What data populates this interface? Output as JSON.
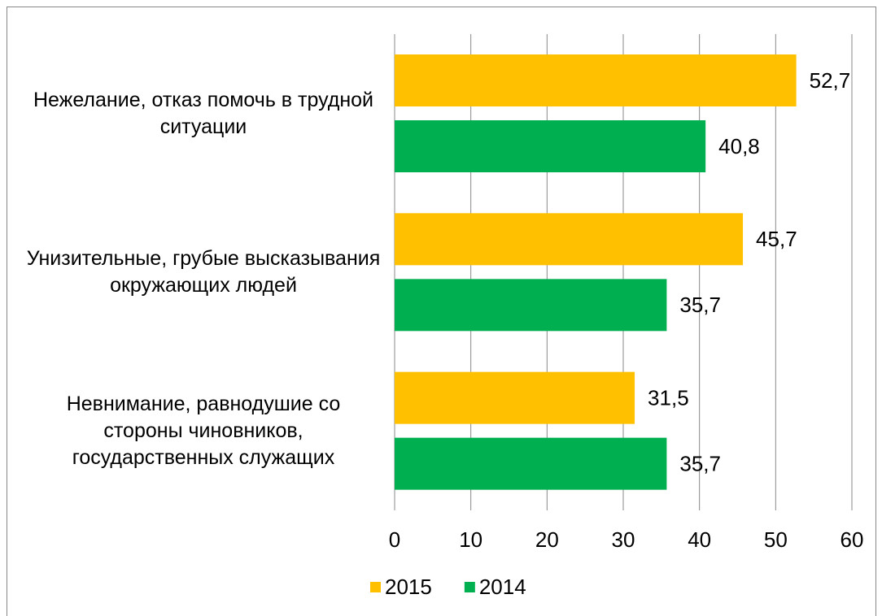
{
  "chart_data": {
    "type": "bar",
    "orientation": "horizontal",
    "categories": [
      "Нежелание, отказ помочь в трудной ситуации",
      "Унизительные, грубые высказывания окружающих людей",
      "Невнимание, равнодушие со стороны чиновников, государственных служащих"
    ],
    "series": [
      {
        "name": "2015",
        "color": "#FFC000",
        "values": [
          52.7,
          45.7,
          31.5
        ],
        "value_labels": [
          "52,7",
          "45,7",
          "31,5"
        ]
      },
      {
        "name": "2014",
        "color": "#00B050",
        "values": [
          40.8,
          35.7,
          35.7
        ],
        "value_labels": [
          "40,8",
          "35,7",
          "35,7"
        ]
      }
    ],
    "xlim": [
      0,
      60
    ],
    "xticks": [
      0,
      10,
      20,
      30,
      40,
      50,
      60
    ],
    "grid": true,
    "legend": "bottom"
  }
}
